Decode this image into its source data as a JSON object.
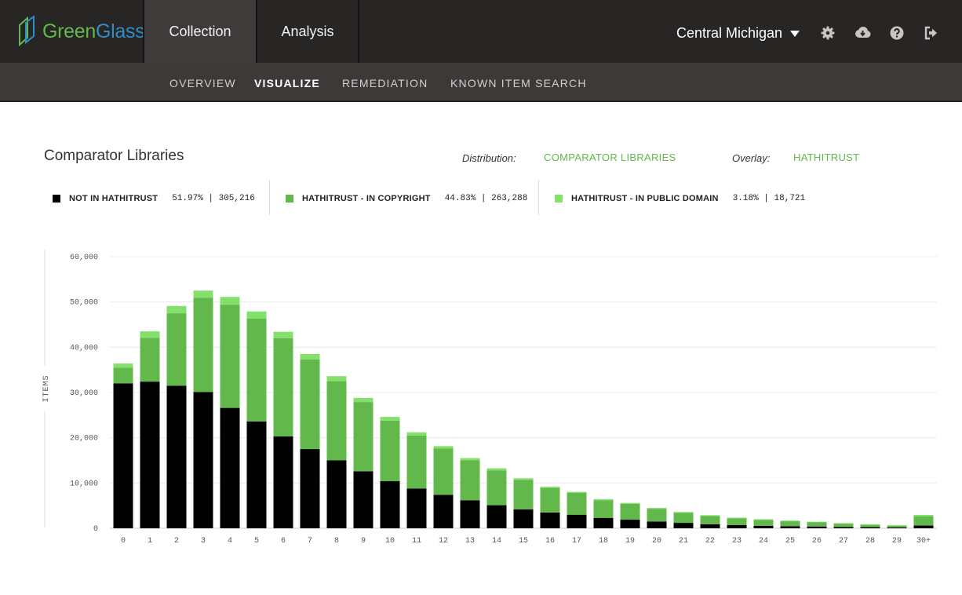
{
  "app": {
    "logo_left": "Green",
    "logo_right": "Glass"
  },
  "nav": {
    "tabs": [
      {
        "label": "Collection"
      },
      {
        "label": "Analysis"
      }
    ],
    "region": "Central Michigan",
    "icons": [
      "gear-icon",
      "cloud-download-icon",
      "help-icon",
      "logout-icon"
    ]
  },
  "subnav": {
    "items": [
      {
        "label": "OVERVIEW"
      },
      {
        "label": "VISUALIZE"
      },
      {
        "label": "REMEDIATION"
      },
      {
        "label": "KNOWN ITEM SEARCH"
      }
    ]
  },
  "page": {
    "title": "Comparator Libraries",
    "distribution_label": "Distribution:",
    "distribution_value": "COMPARATOR LIBRARIES",
    "overlay_label": "Overlay:",
    "overlay_value": "HATHITRUST"
  },
  "legend": [
    {
      "label": "NOT IN HATHITRUST",
      "stat": "51.97% | 305,216",
      "color": "#000000"
    },
    {
      "label": "HATHITRUST - IN COPYRIGHT",
      "stat": "44.83% | 263,288",
      "color": "#62b84b"
    },
    {
      "label": "HATHITRUST - IN PUBLIC DOMAIN",
      "stat": "3.18% | 18,721",
      "color": "#83e06a"
    }
  ],
  "chart_data": {
    "type": "bar",
    "stacked": true,
    "ylabel": "ITEMS",
    "ylim": [
      0,
      60000
    ],
    "yticks": [
      0,
      10000,
      20000,
      30000,
      40000,
      50000,
      60000
    ],
    "ytick_labels": [
      "0",
      "10,000",
      "20,000",
      "30,000",
      "40,000",
      "50,000",
      "60,000"
    ],
    "grid": true,
    "categories": [
      "0",
      "1",
      "2",
      "3",
      "4",
      "5",
      "6",
      "7",
      "8",
      "9",
      "10",
      "11",
      "12",
      "13",
      "14",
      "15",
      "16",
      "17",
      "18",
      "19",
      "20",
      "21",
      "22",
      "23",
      "24",
      "25",
      "26",
      "27",
      "28",
      "29",
      "30+"
    ],
    "series": [
      {
        "name": "NOT IN HATHITRUST",
        "color": "#000000",
        "values": [
          32000,
          32400,
          31500,
          30100,
          26600,
          23600,
          20300,
          17500,
          15000,
          12600,
          10400,
          8800,
          7400,
          6200,
          5100,
          4200,
          3500,
          3000,
          2300,
          1900,
          1500,
          1200,
          900,
          700,
          550,
          450,
          400,
          300,
          250,
          200,
          600
        ]
      },
      {
        "name": "HATHITRUST - IN COPYRIGHT",
        "color": "#62b84b",
        "values": [
          3500,
          9700,
          16000,
          20800,
          22800,
          22700,
          21700,
          19800,
          17500,
          15300,
          13400,
          11700,
          10200,
          8800,
          7700,
          6500,
          5400,
          4800,
          3900,
          3500,
          2800,
          2200,
          1800,
          1500,
          1300,
          1100,
          900,
          700,
          500,
          350,
          2000
        ]
      },
      {
        "name": "HATHITRUST - IN PUBLIC DOMAIN",
        "color": "#83e06a",
        "values": [
          900,
          1400,
          1600,
          1600,
          1700,
          1600,
          1400,
          1200,
          1100,
          900,
          800,
          700,
          550,
          500,
          450,
          350,
          300,
          250,
          250,
          200,
          200,
          200,
          200,
          150,
          150,
          150,
          150,
          150,
          150,
          150,
          350
        ]
      }
    ]
  }
}
